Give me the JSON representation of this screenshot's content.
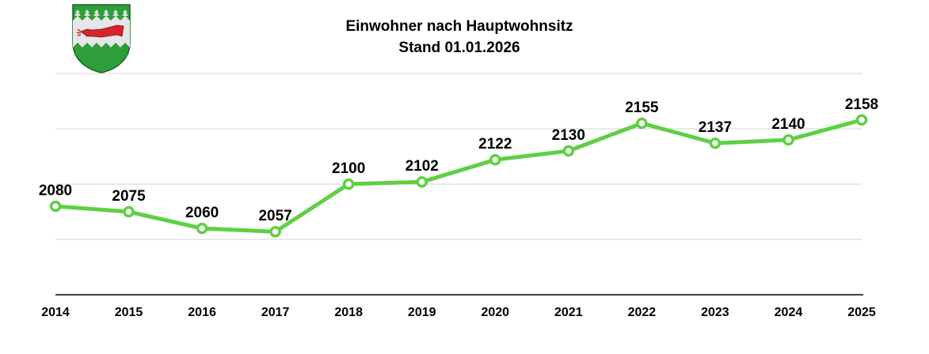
{
  "header": {
    "title_line1": "Einwohner nach Hauptwohnsitz",
    "title_line2": "Stand 01.01.2026",
    "logo": "coat-of-arms-icon"
  },
  "colors": {
    "line": "#5fcf45",
    "gridline": "#d0d0d0",
    "axis": "#000000",
    "crest_green": "#2e9e3a",
    "crest_silver": "#e6e6e6",
    "crest_red": "#d8232a"
  },
  "chart_data": {
    "type": "line",
    "title": "Einwohner nach Hauptwohnsitz",
    "subtitle": "Stand 01.01.2026",
    "categories": [
      "2014",
      "2015",
      "2016",
      "2017",
      "2018",
      "2019",
      "2020",
      "2021",
      "2022",
      "2023",
      "2024",
      "2025"
    ],
    "series": [
      {
        "name": "Einwohner",
        "values": [
          2080,
          2075,
          2060,
          2057,
          2100,
          2102,
          2122,
          2130,
          2155,
          2137,
          2140,
          2158
        ]
      }
    ],
    "xlabel": "",
    "ylabel": "",
    "ylim": [
      2000,
      2200
    ],
    "gridlines": [
      2050,
      2100,
      2150,
      2200
    ],
    "grid": true,
    "data_labels": true,
    "legend": "none"
  }
}
